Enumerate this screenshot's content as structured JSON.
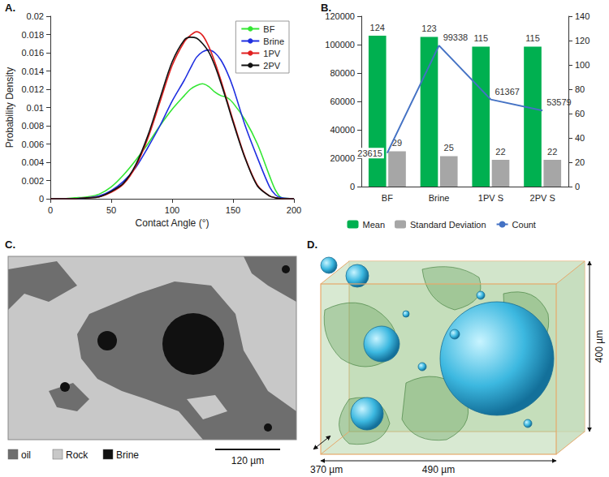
{
  "chart_data": [
    {
      "panel": "A.",
      "type": "line",
      "xlabel": "Contact Angle (°)",
      "ylabel": "Probability Density",
      "x": [
        0,
        10,
        20,
        30,
        40,
        50,
        60,
        70,
        80,
        90,
        100,
        110,
        115,
        120,
        125,
        130,
        135,
        140,
        145,
        150,
        160,
        170,
        180,
        185,
        190,
        200
      ],
      "series": [
        {
          "name": "BF",
          "color": "#33e633",
          "values": [
            0,
            0,
            0.0001,
            0.0002,
            0.0005,
            0.0013,
            0.0026,
            0.0042,
            0.006,
            0.008,
            0.0098,
            0.0113,
            0.012,
            0.0124,
            0.0126,
            0.0123,
            0.0117,
            0.0113,
            0.0111,
            0.0105,
            0.0086,
            0.006,
            0.0025,
            0.0009,
            0.0001,
            0
          ]
        },
        {
          "name": "Brine",
          "color": "#1f2fe0",
          "values": [
            0,
            0,
            0,
            0.0001,
            0.0003,
            0.0009,
            0.0019,
            0.0034,
            0.0056,
            0.008,
            0.0107,
            0.013,
            0.0143,
            0.0155,
            0.0161,
            0.0163,
            0.016,
            0.0152,
            0.0139,
            0.0122,
            0.008,
            0.0045,
            0.0013,
            0.0004,
            0.0001,
            0
          ]
        },
        {
          "name": "1PV",
          "color": "#e01f1f",
          "values": [
            0,
            0,
            0,
            0.0001,
            0.0002,
            0.0007,
            0.0016,
            0.0035,
            0.0066,
            0.0106,
            0.0146,
            0.0172,
            0.0179,
            0.0183,
            0.0179,
            0.0167,
            0.015,
            0.013,
            0.0108,
            0.0086,
            0.0045,
            0.0015,
            0.0003,
            0.0001,
            0,
            0
          ]
        },
        {
          "name": "2PV",
          "color": "#111111",
          "values": [
            0,
            0,
            0,
            0.0001,
            0.0002,
            0.0008,
            0.0017,
            0.0037,
            0.0069,
            0.011,
            0.015,
            0.0174,
            0.0177,
            0.0176,
            0.017,
            0.0161,
            0.0146,
            0.0127,
            0.0106,
            0.0084,
            0.0044,
            0.0014,
            0.0003,
            0.0001,
            0,
            0
          ]
        }
      ],
      "xlim": [
        0,
        200
      ],
      "xticks": [
        0,
        50,
        100,
        150,
        200
      ],
      "ylim": [
        0,
        0.02
      ],
      "yticks": [
        0,
        0.002,
        0.004,
        0.006,
        0.008,
        0.01,
        0.012,
        0.014,
        0.016,
        0.018,
        0.02
      ],
      "legend": "upper right",
      "grid": false
    },
    {
      "panel": "B.",
      "type": "bar",
      "categories": [
        "BF",
        "Brine",
        "1PV S",
        "2PV S"
      ],
      "series": [
        {
          "name": "Mean",
          "type": "bar",
          "color": "#00b050",
          "axis": "y2",
          "values": [
            124,
            123,
            115,
            115
          ]
        },
        {
          "name": "Standard Deviation",
          "type": "bar",
          "color": "#a6a6a6",
          "axis": "y2",
          "values": [
            29,
            25,
            22,
            22
          ]
        },
        {
          "name": "Count",
          "type": "line",
          "color": "#4472c4",
          "values": [
            23615,
            99338,
            61367,
            53579
          ]
        }
      ],
      "ylim": [
        0,
        120000
      ],
      "yticks": [
        0,
        20000,
        40000,
        60000,
        80000,
        100000,
        120000
      ],
      "y2lim": [
        0,
        140
      ],
      "y2ticks": [
        0,
        20,
        40,
        60,
        80,
        100,
        120,
        140
      ],
      "data_labels": true,
      "legend": "bottom",
      "grid": false
    }
  ],
  "images": [
    {
      "panel": "C.",
      "legend": [
        {
          "name": "oil",
          "color": "#6e6e6e"
        },
        {
          "name": "Rock",
          "color": "#c8c8c8"
        },
        {
          "name": "Brine",
          "color": "#111111"
        }
      ],
      "scale_bar": "120 µm"
    },
    {
      "panel": "D.",
      "dimensions": {
        "depth": "370 µm",
        "width": "490 µm",
        "height": "400 µm"
      }
    }
  ]
}
